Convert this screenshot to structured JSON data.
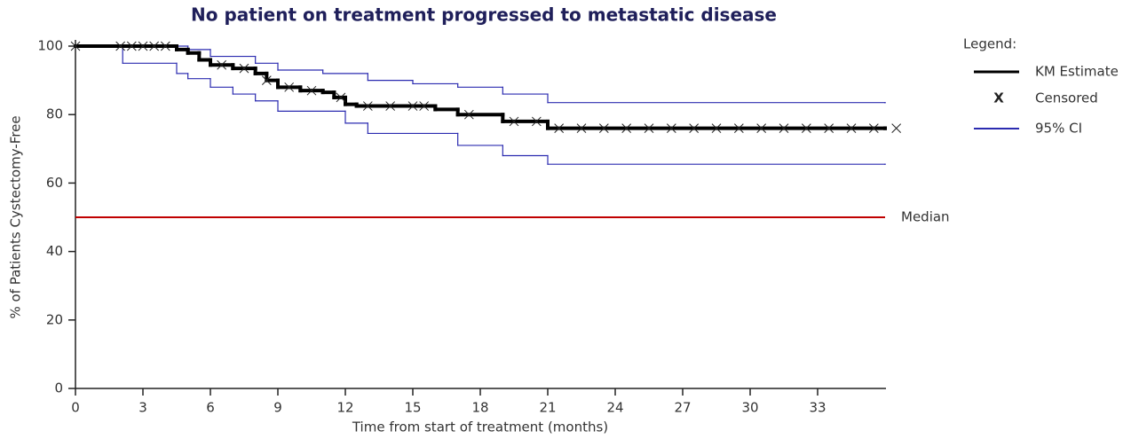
{
  "chart_data": {
    "type": "step",
    "title": "No patient on treatment progressed to metastatic disease",
    "x_label": "Time from start of treatment (months)",
    "y_label": "% of Patients Cystectomy-Free",
    "xlim": [
      0,
      36
    ],
    "xticks": [
      0,
      3,
      6,
      9,
      12,
      15,
      18,
      21,
      24,
      27,
      30,
      33
    ],
    "ylim": [
      0,
      100
    ],
    "yticks": [
      0,
      20,
      40,
      60,
      80,
      100
    ],
    "legend_title": "Legend:",
    "series": [
      {
        "name": "KM Estimate",
        "color": "#000000",
        "width": 4,
        "x": [
          0,
          4.5,
          5,
          5.5,
          6,
          7,
          8,
          8.5,
          9,
          10,
          11,
          11.5,
          12,
          12.5,
          16,
          17,
          19,
          21,
          36
        ],
        "values": [
          100,
          99,
          98,
          96,
          94.5,
          93.5,
          92,
          90,
          88,
          87,
          86.5,
          85,
          83,
          82.5,
          81.5,
          80,
          78,
          76,
          76
        ]
      },
      {
        "name": "95% CI",
        "color": "#2b2bb0",
        "width": 1.2,
        "x": [
          0,
          4.5,
          5,
          6,
          8,
          9,
          11,
          13,
          15,
          17,
          19,
          21,
          36
        ],
        "values": [
          100,
          100,
          99,
          97,
          95,
          93,
          92,
          90,
          89,
          88,
          86,
          83.5,
          83.5
        ]
      },
      {
        "name": null,
        "color": "#2b2bb0",
        "width": 1.2,
        "x": [
          0,
          2.1,
          4.5,
          5,
          6,
          7,
          8,
          9,
          12,
          13,
          17,
          19,
          21,
          36
        ],
        "values": [
          100,
          95,
          92,
          90.5,
          88,
          86,
          84,
          81,
          77.5,
          74.5,
          71,
          68,
          65.5,
          65.5
        ]
      }
    ],
    "censored": {
      "name": "Censored",
      "marker": "X",
      "x": [
        0,
        2,
        2.5,
        3,
        3.5,
        4,
        6.5,
        7.5,
        8.5,
        9.5,
        10.5,
        11.8,
        13,
        14,
        15,
        15.5,
        17.5,
        19.5,
        20.5,
        21.5,
        22.5,
        23.5,
        24.5,
        25.5,
        26.5,
        27.5,
        28.5,
        29.5,
        30.5,
        31.5,
        32.5,
        33.5,
        34.5,
        35.5,
        36.5
      ],
      "values": [
        100,
        100,
        100,
        100,
        100,
        100,
        94.5,
        93.5,
        90,
        88,
        87,
        85,
        82.5,
        82.5,
        82.5,
        82.5,
        80,
        78,
        78,
        76,
        76,
        76,
        76,
        76,
        76,
        76,
        76,
        76,
        76,
        76,
        76,
        76,
        76,
        76,
        76
      ]
    },
    "median": {
      "value": 50,
      "label": "Median",
      "color": "#c00000"
    }
  }
}
